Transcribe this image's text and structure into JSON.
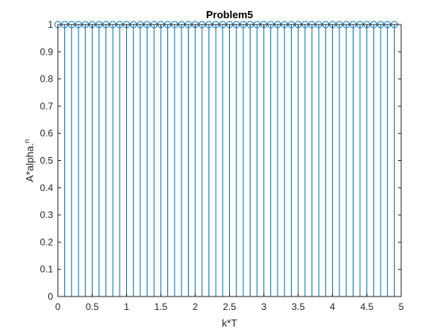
{
  "chart_data": {
    "type": "stem",
    "title": "Problem5",
    "xlabel": "k*T",
    "ylabel": "A*alpha.",
    "ylabel_superscript": "n",
    "xlim": [
      0,
      5
    ],
    "ylim": [
      0,
      1
    ],
    "grid": false,
    "x_ticks": [
      "0",
      "0.5",
      "1",
      "1.5",
      "2",
      "2.5",
      "3",
      "3.5",
      "4",
      "4.5",
      "5"
    ],
    "y_ticks": [
      "0",
      "0.1",
      "0.2",
      "0.3",
      "0.4",
      "0.5",
      "0.6",
      "0.7",
      "0.8",
      "0.9",
      "1"
    ],
    "series": [
      {
        "color": "#0072BD",
        "x_start": 0,
        "x_step": 0.1,
        "count": 50,
        "value": 1
      }
    ]
  }
}
